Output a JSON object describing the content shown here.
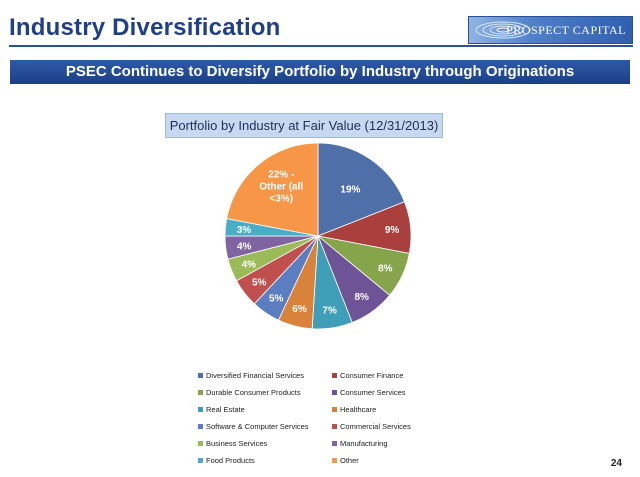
{
  "slide": {
    "title": "Industry Diversification",
    "banner": "PSEC Continues to Diversify Portfolio by Industry through Originations",
    "logo_text": "PROSPECT CAPITAL",
    "page_number": "24"
  },
  "chart_data": {
    "type": "pie",
    "title": "Portfolio by Industry at Fair Value (12/31/2013)",
    "slices": [
      {
        "name": "Diversified Financial Services",
        "value": 19,
        "label": "19%",
        "color": "#4f6fa8"
      },
      {
        "name": "Consumer Finance",
        "value": 9,
        "label": "9%",
        "color": "#a9403e"
      },
      {
        "name": "Durable Consumer Products",
        "value": 8,
        "label": "8%",
        "color": "#86a44a"
      },
      {
        "name": "Consumer Services",
        "value": 8,
        "label": "8%",
        "color": "#6e5496"
      },
      {
        "name": "Real Estate",
        "value": 7,
        "label": "7%",
        "color": "#3f9fb8"
      },
      {
        "name": "Healthcare",
        "value": 6,
        "label": "6%",
        "color": "#d9823b"
      },
      {
        "name": "Software & Computer Services",
        "value": 5,
        "label": "5%",
        "color": "#5a7ec0"
      },
      {
        "name": "Commercial Services",
        "value": 5,
        "label": "5%",
        "color": "#c0504d"
      },
      {
        "name": "Business Services",
        "value": 4,
        "label": "4%",
        "color": "#9bbb59"
      },
      {
        "name": "Manufacturing",
        "value": 4,
        "label": "4%",
        "color": "#8064a2"
      },
      {
        "name": "Food Products",
        "value": 3,
        "label": "3%",
        "color": "#4bacc6"
      },
      {
        "name": "Other",
        "value": 22,
        "label": "22% - Other (all <3%)",
        "color": "#f79646"
      }
    ],
    "legend": [
      {
        "name": "Diversified Financial Services",
        "color": "#4f6fa8"
      },
      {
        "name": "Consumer Finance",
        "color": "#a9403e"
      },
      {
        "name": "Durable Consumer Products",
        "color": "#86a44a"
      },
      {
        "name": "Consumer Services",
        "color": "#6e5496"
      },
      {
        "name": "Real Estate",
        "color": "#3f9fb8"
      },
      {
        "name": "Healthcare",
        "color": "#d9823b"
      },
      {
        "name": "Software & Computer Services",
        "color": "#5a7ec0"
      },
      {
        "name": "Commercial Services",
        "color": "#c0504d"
      },
      {
        "name": "Business Services",
        "color": "#9bbb59"
      },
      {
        "name": "Manufacturing",
        "color": "#8064a2"
      },
      {
        "name": "Food Products",
        "color": "#4bacc6"
      },
      {
        "name": "Other",
        "color": "#f79646"
      }
    ],
    "legend_placement": "bottom"
  }
}
